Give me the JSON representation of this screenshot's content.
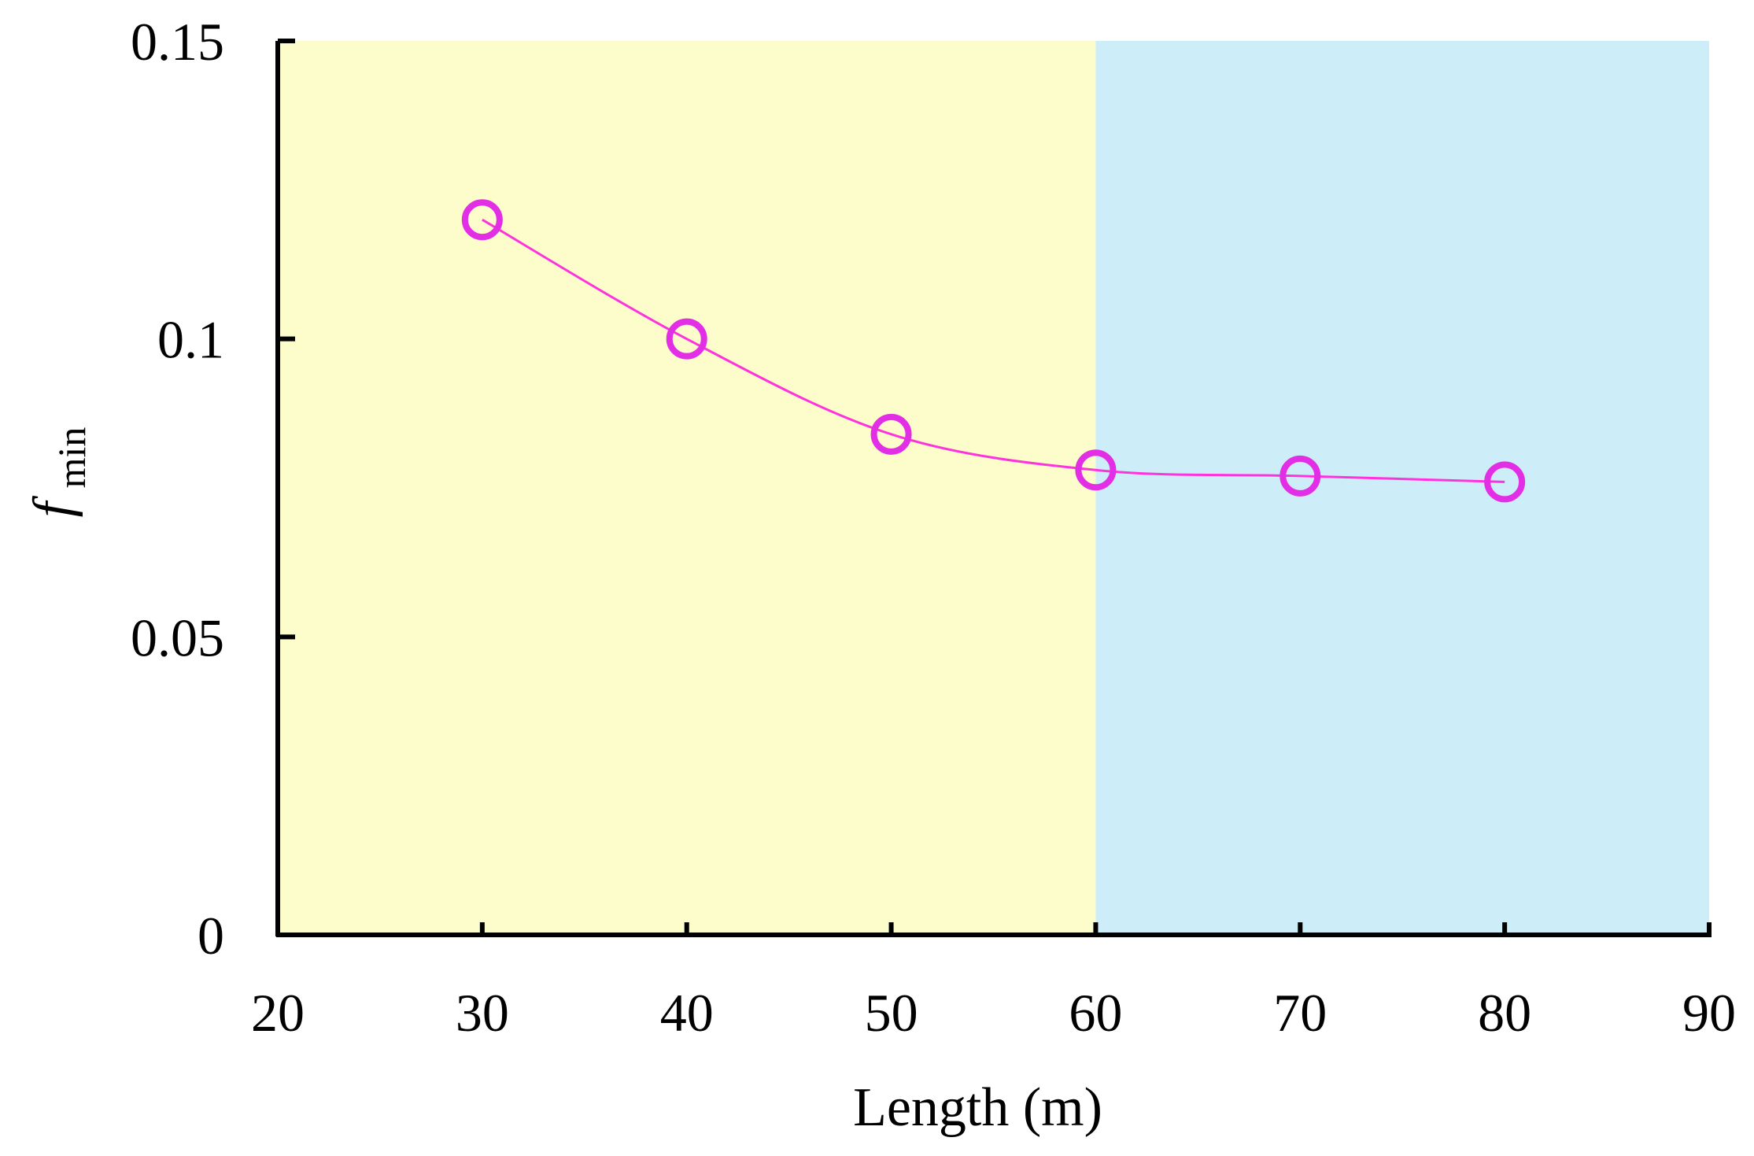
{
  "chart_data": {
    "type": "line",
    "title": "",
    "xlabel": "Length (m)",
    "ylabel": {
      "main": "f",
      "sub": "min"
    },
    "xlim": [
      20,
      90
    ],
    "ylim": [
      0,
      0.15
    ],
    "x_ticks": [
      "20",
      "30",
      "40",
      "50",
      "60",
      "70",
      "80",
      "90"
    ],
    "y_ticks": [
      "0",
      "0.05",
      "0.1",
      "0.15"
    ],
    "regions": [
      {
        "x_from": 20,
        "x_to": 60,
        "color": "#fdfccb"
      },
      {
        "x_from": 60,
        "x_to": 90,
        "color": "#cdeef9"
      }
    ],
    "series": [
      {
        "x": [
          30,
          40,
          50,
          60,
          70,
          80
        ],
        "values": [
          0.12,
          0.1,
          0.084,
          0.078,
          0.077,
          0.076
        ],
        "line_color": "#ff33dd",
        "marker_color": "#e22fe6",
        "marker": "hollow-circle"
      }
    ],
    "grid": false,
    "legend": "none"
  }
}
